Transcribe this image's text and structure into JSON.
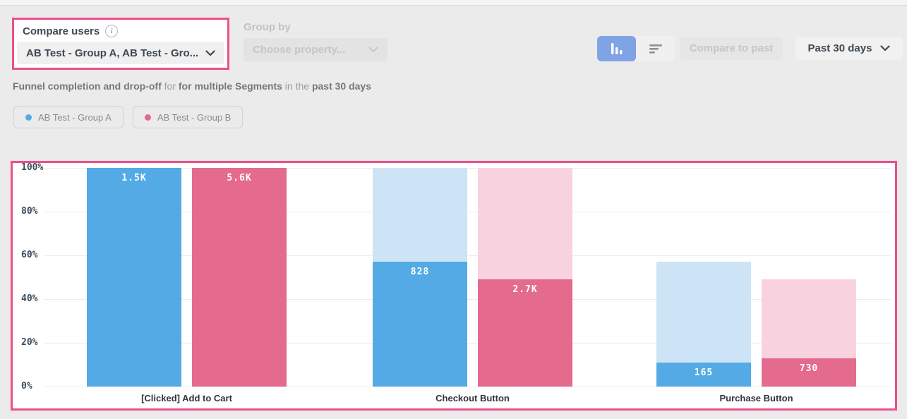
{
  "controls": {
    "compare_users": {
      "label": "Compare users",
      "value": "AB Test - Group A, AB Test - Gro...",
      "info_icon": "i"
    },
    "group_by": {
      "label": "Group by",
      "placeholder": "Choose property..."
    },
    "compare_to_past_label": "Compare to past",
    "date_range_label": "Past 30 days"
  },
  "subtitle": {
    "part1": "Funnel completion and drop-off",
    "part2": " for ",
    "part3": "for multiple Segments",
    "part4": " in the ",
    "part5": "past 30 days"
  },
  "legend": {
    "items": [
      {
        "label": "AB Test - Group A",
        "color": "#54AAE4"
      },
      {
        "label": "AB Test - Group B",
        "color": "#E46A8E"
      }
    ]
  },
  "colors": {
    "highlight_border": "#ED4E8C",
    "toggle_selected": "#7FA3E4",
    "series_a": "#54AAE4",
    "series_a_light": "#CDE4F7",
    "series_b": "#E46A8E",
    "series_b_light": "#F8D2DE"
  },
  "chart_data": {
    "type": "bar",
    "title": "Funnel completion and drop-off for for multiple Segments in the past 30 days",
    "categories": [
      "[Clicked] Add to Cart",
      "Checkout Button",
      "Purchase Button"
    ],
    "series": [
      {
        "name": "AB Test - Group A",
        "color": "#54AAE4",
        "light_color": "#CDE4F7",
        "labels": [
          "1.5K",
          "828",
          "165"
        ],
        "percent": [
          100,
          57,
          11
        ],
        "prev_percent": [
          100,
          100,
          57
        ]
      },
      {
        "name": "AB Test - Group B",
        "color": "#E46A8E",
        "light_color": "#F8D2DE",
        "labels": [
          "5.6K",
          "2.7K",
          "730"
        ],
        "percent": [
          100,
          49,
          13
        ],
        "prev_percent": [
          100,
          100,
          49
        ]
      }
    ],
    "ytick_labels": [
      "100%",
      "80%",
      "60%",
      "40%",
      "20%",
      "0%"
    ],
    "ylim": [
      0,
      100
    ],
    "grid": true,
    "legend_position": "top-left"
  }
}
